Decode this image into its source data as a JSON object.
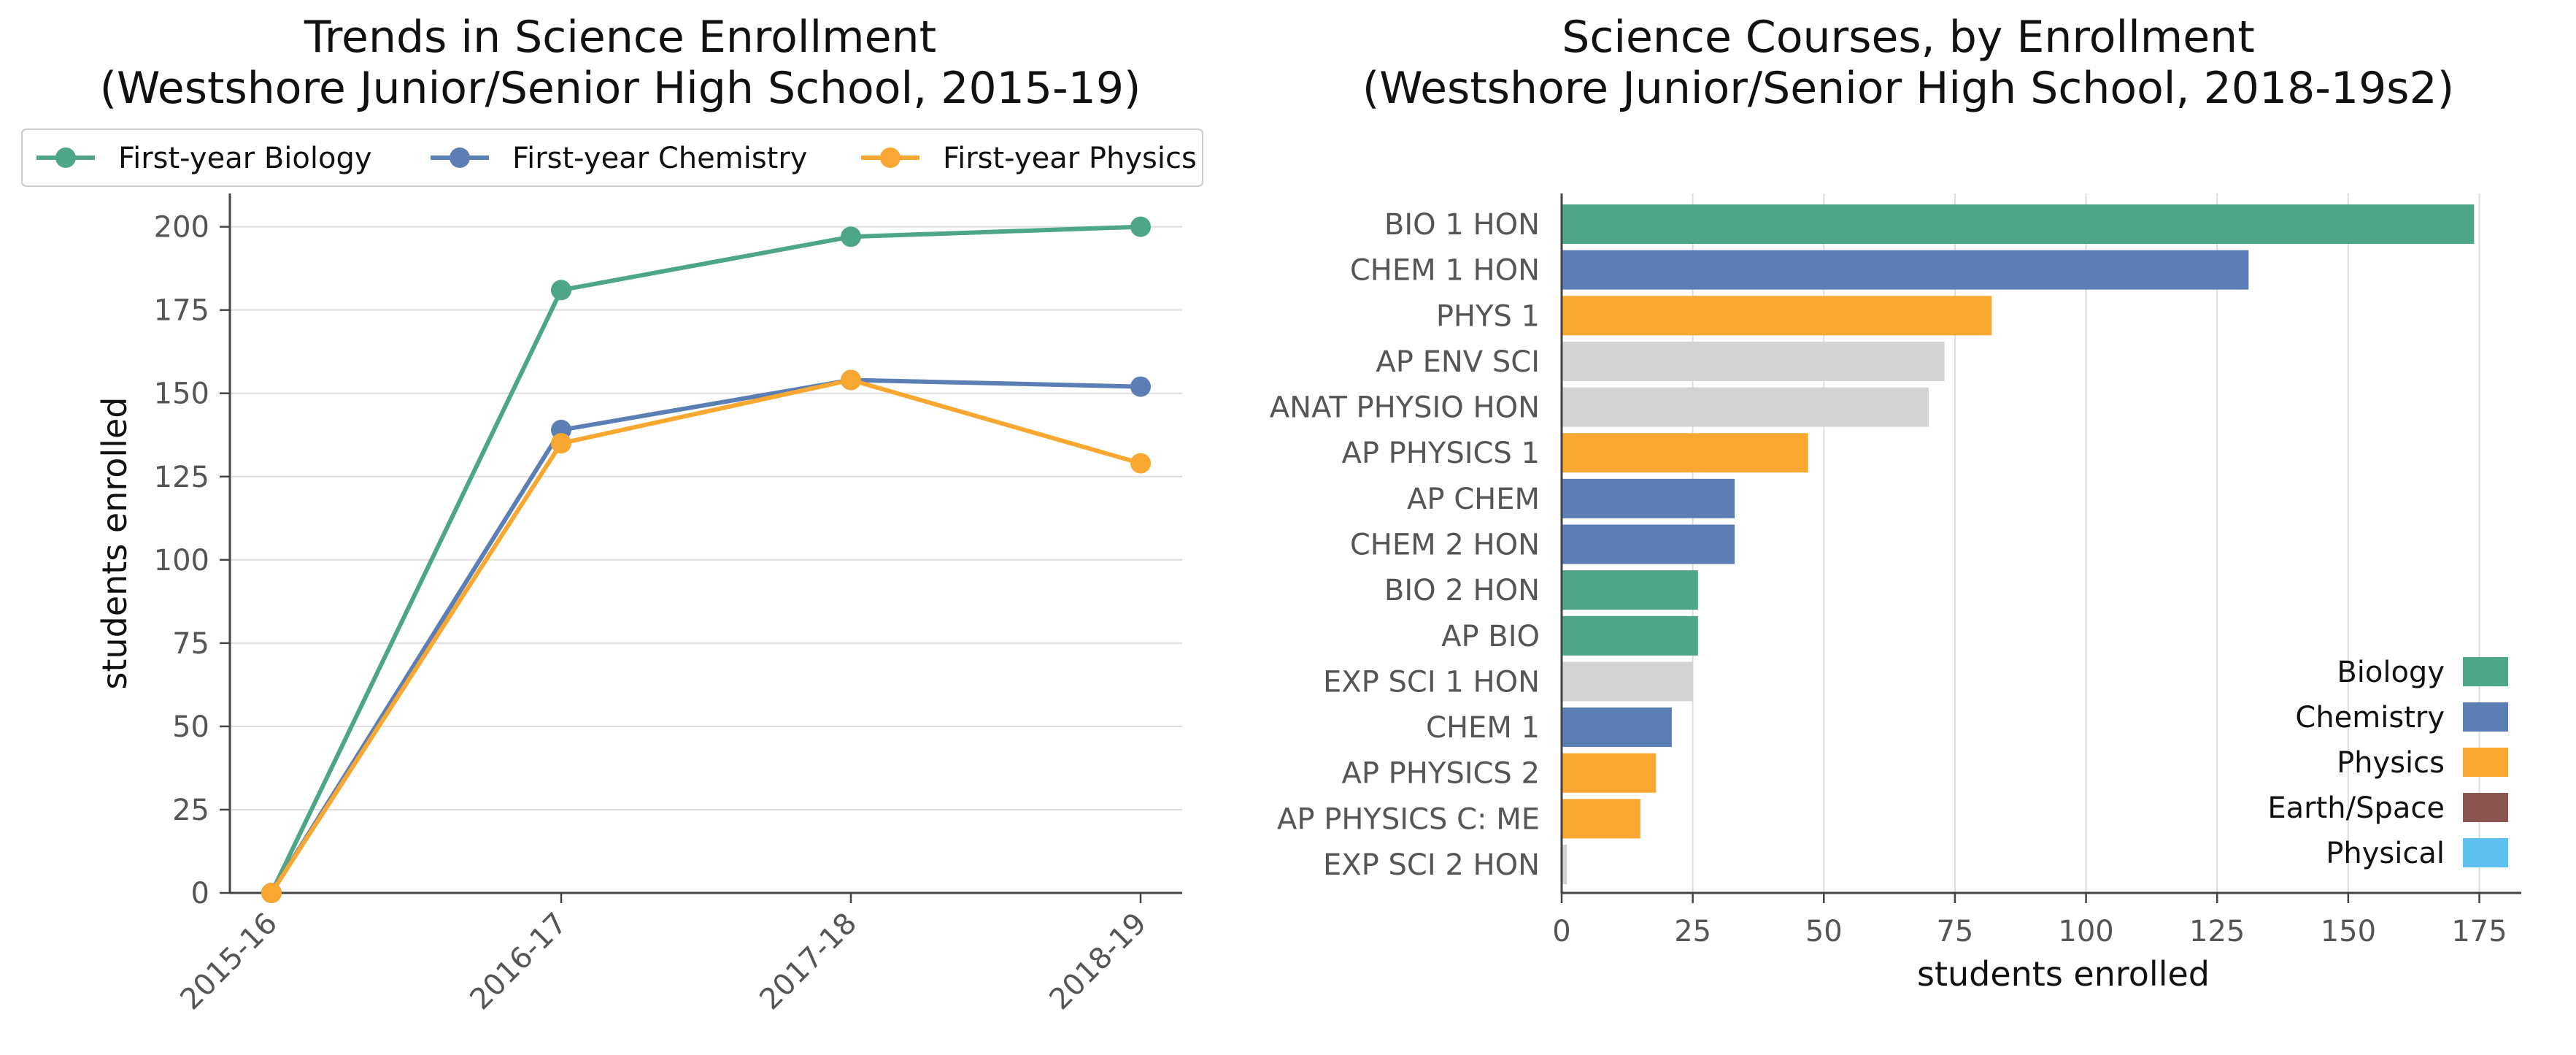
{
  "chart_data": [
    {
      "type": "line",
      "title_line1": "Trends in Science Enrollment",
      "title_line2": "(Westshore Junior/Senior High School, 2015-19)",
      "ylabel": "students enrolled",
      "xlabel": "",
      "x": [
        "2015-16",
        "2016-17",
        "2017-18",
        "2018-19"
      ],
      "ylim": [
        0,
        210
      ],
      "yticks": [
        0,
        25,
        50,
        75,
        100,
        125,
        150,
        175,
        200
      ],
      "grid": "horizontal",
      "legend_position": "top",
      "series": [
        {
          "name": "First-year Biology",
          "color": "#4da685",
          "values": [
            0,
            181,
            197,
            200
          ]
        },
        {
          "name": "First-year Chemistry",
          "color": "#5b7fb4",
          "values": [
            0,
            139,
            154,
            152
          ]
        },
        {
          "name": "First-year Physics",
          "color": "#f8a830",
          "values": [
            0,
            135,
            154,
            129
          ]
        }
      ]
    },
    {
      "type": "bar",
      "orientation": "horizontal",
      "title_line1": "Science Courses, by Enrollment",
      "title_line2": "(Westshore Junior/Senior High School, 2018-19s2)",
      "xlabel": "students enrolled",
      "xlim": [
        0,
        183
      ],
      "xticks": [
        0,
        25,
        50,
        75,
        100,
        125,
        150,
        175
      ],
      "grid": "vertical",
      "legend_position": "lower-right",
      "legend": [
        {
          "label": "Biology",
          "color": "#4da685"
        },
        {
          "label": "Chemistry",
          "color": "#5b7fb4"
        },
        {
          "label": "Physics",
          "color": "#f8a830"
        },
        {
          "label": "Earth/Space",
          "color": "#8c5450"
        },
        {
          "label": "Physical",
          "color": "#5ec0ee"
        }
      ],
      "categories": [
        "BIO 1 HON",
        "CHEM 1 HON",
        "PHYS 1",
        "AP ENV SCI",
        "ANAT PHYSIO HON",
        "AP PHYSICS 1",
        "AP CHEM",
        "CHEM 2 HON",
        "BIO 2 HON",
        "AP BIO",
        "EXP SCI 1 HON",
        "CHEM 1",
        "AP PHYSICS 2",
        "AP PHYSICS C: ME",
        "EXP SCI 2 HON"
      ],
      "values": [
        174,
        131,
        82,
        73,
        70,
        47,
        33,
        33,
        26,
        26,
        25,
        21,
        18,
        15,
        1
      ],
      "colors": [
        "#4da685",
        "#5b7fb4",
        "#f8a830",
        "#d3d3d3",
        "#d3d3d3",
        "#f8a830",
        "#5b7fb4",
        "#5b7fb4",
        "#4da685",
        "#4da685",
        "#d3d3d3",
        "#5b7fb4",
        "#f8a830",
        "#f8a830",
        "#d3d3d3"
      ]
    }
  ]
}
